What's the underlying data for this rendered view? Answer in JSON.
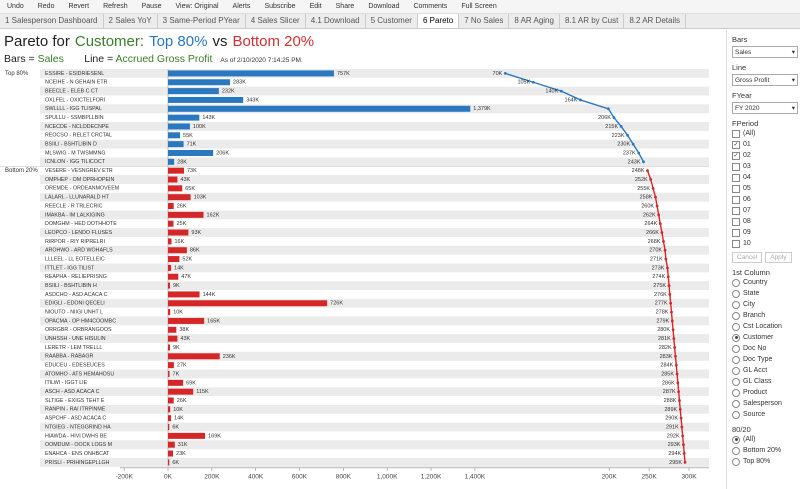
{
  "toolbar": {
    "items": [
      "Undo",
      "Redo",
      "Revert",
      "Refresh",
      "Pause",
      "View: Original",
      "Alerts",
      "Subscribe",
      "Edit",
      "Share",
      "Download",
      "Comments",
      "Full Screen"
    ]
  },
  "tabs": {
    "items": [
      "1 Salesperson Dashboard",
      "2 Sales YoY",
      "3 Same-Period PYear",
      "4 Sales Slicer",
      "4.1 Download",
      "5 Customer",
      "6 Pareto",
      "7 No Sales",
      "8 AR Aging",
      "8.1 AR by Cust",
      "8.2 AR Details"
    ],
    "active": 6
  },
  "header": {
    "title": [
      {
        "text": "Pareto for",
        "color": "#222"
      },
      {
        "text": "Customer:",
        "color": "#3a7d2a"
      },
      {
        "text": "Top 80%",
        "color": "#2a78c0"
      },
      {
        "text": "vs",
        "color": "#222"
      },
      {
        "text": "Bottom 20%",
        "color": "#d03030"
      }
    ],
    "subtitle": [
      {
        "text": "Bars = ",
        "color": "#222"
      },
      {
        "text": "Sales",
        "color": "#3a7d2a"
      },
      {
        "text": "       Line = ",
        "color": "#222"
      },
      {
        "text": "Accrued Gross Profit",
        "color": "#3a7d2a"
      }
    ],
    "as_of": "As of 2/10/2020 7:14:25 PM."
  },
  "chart_data": {
    "type": "pareto",
    "xlim": [
      -219000,
      2468000
    ],
    "xticks": [
      {
        "value": -200000,
        "label": "-200K"
      },
      {
        "value": 0,
        "label": "0K"
      },
      {
        "value": 200000,
        "label": "200K"
      },
      {
        "value": 400000,
        "label": "400K"
      },
      {
        "value": 600000,
        "label": "600K"
      },
      {
        "value": 800000,
        "label": "800K"
      },
      {
        "value": 1000000,
        "label": "1,000K"
      },
      {
        "value": 1200000,
        "label": "1,200K"
      },
      {
        "value": 1400000,
        "label": "1,400K"
      }
    ],
    "x2lim": [
      -412500,
      325000
    ],
    "x2ticks": [
      {
        "value": 200000,
        "label": "200K"
      },
      {
        "value": 250000,
        "label": "250K"
      },
      {
        "value": 300000,
        "label": "300K"
      }
    ],
    "groups": [
      {
        "name": "Top 80%",
        "color": "#2a78c0",
        "categories": [
          "ESSIRE - ESIDRIESENL",
          "NCEIHE - N GEHAIN ETR",
          "BEECLE - ELEB C CT",
          "OXLFEL - OXICTELFORI",
          "SWLLLL - IGG TLISPAL",
          "SPULLU - SSMBPLLBIN",
          "NCECDE - NCLODECNPE",
          "REOCSO - RELET CRCTAL",
          "BSIILI - BSHTLIBIN D",
          "MLSWIG - M TWSMMNG",
          "ICNLON - IGG TILICOCT"
        ],
        "bars": {
          "values": [
            757000,
            283000,
            232000,
            343000,
            1379000,
            143000,
            100000,
            55000,
            71000,
            206000,
            28000
          ],
          "value_labels": [
            "757K",
            "283K",
            "232K",
            "343K",
            "1,379K",
            "143K",
            "100K",
            "55K",
            "71K",
            "206K",
            "28K"
          ]
        },
        "line": {
          "values": [
            70000,
            105000,
            140000,
            164000,
            199000,
            206000,
            215000,
            223000,
            230000,
            237000,
            243000
          ],
          "value_labels": [
            "70K",
            "105K",
            "140K",
            "164K",
            null,
            "206K",
            "215K",
            "223K",
            "230K",
            "237K",
            "243K"
          ]
        }
      },
      {
        "name": "Bottom 20%",
        "color": "#d62728",
        "categories": [
          "VESERE - VESNGREV ETR",
          "OMPHEP - OM OPRHOPEIN",
          "OREMDE - ORDEANMOVEEM",
          "LALARL - LLUNARALD HT",
          "REECLE - R TRLECRIC",
          "IMAKBA - IM LALKIGING",
          "DOMGHM - HED DOTHHOTE",
          "LEOPCO - LENDO FLUSES",
          "RIRPOR - RIY RIPRELRI",
          "AROHWO - ARD WOHAFLS",
          "LLLEEL - LL EOTELLEIC",
          "ITTLET - IGG TILIST",
          "REAPHA - RELIEPRISNG",
          "BSIILI - BSHTLIBIN H",
          "ASDCHO - ASD ACACA C",
          "EDIGLI - EDONI QECELI",
          "NIOUTO - NIIGI UNHT L",
          "OPACMA - OP HM4COOMBC",
          "ORRGBR - ORBRANGOOS",
          "UNHSSH - UNE HISULIN",
          "LERETR - LEM TRELLL",
          "RAABBA - RABAGR",
          "EDUCEU - EDESEUCES",
          "ATOMHO - ATS HEMAHOSU",
          "ITILWI - IGGT LIE",
          "ASCH - ASD ACACA C",
          "SLTIGE - EXIGS TEHT E",
          "RANPIN - RAI ITRPINME",
          "ASPCHF - ASD ACACA C",
          "NTGIEG - NTEGGRIND HA",
          "HIAWDA - HIVI DWHS BE",
          "OOMDUM - OOCK LOGS M",
          "ENAHCA - ENS ONHBCAT",
          "PRISLI - PRIHINGEPLLGH"
        ],
        "bars": {
          "values": [
            73000,
            43000,
            65000,
            103000,
            26000,
            162000,
            25000,
            93000,
            16000,
            86000,
            52000,
            14000,
            47000,
            9000,
            144000,
            726000,
            10000,
            165000,
            38000,
            43000,
            9000,
            236000,
            27000,
            7000,
            69000,
            115000,
            26000,
            10000,
            14000,
            6000,
            169000,
            31000,
            23000,
            6000
          ],
          "value_labels": [
            "73K",
            "43K",
            "65K",
            "103K",
            "26K",
            "162K",
            "25K",
            "93K",
            "16K",
            "86K",
            "52K",
            "14K",
            "47K",
            "9K",
            "144K",
            "726K",
            "10K",
            "165K",
            "38K",
            "43K",
            "9K",
            "236K",
            "27K",
            "7K",
            "69K",
            "115K",
            "26K",
            "10K",
            "14K",
            "6K",
            "169K",
            "31K",
            "23K",
            "6K"
          ]
        },
        "line": {
          "values": [
            248000,
            252000,
            255000,
            258000,
            260000,
            262000,
            264000,
            266000,
            268000,
            270000,
            271000,
            273000,
            274000,
            275000,
            276000,
            277000,
            278000,
            279000,
            280000,
            281000,
            282000,
            283000,
            284000,
            285000,
            286000,
            287000,
            288000,
            289000,
            290000,
            291000,
            292000,
            293000,
            294000,
            295000
          ],
          "value_labels": [
            "248K",
            "252K",
            "255K",
            "258K",
            "260K",
            "262K",
            "264K",
            "266K",
            "268K",
            "270K",
            "271K",
            "273K",
            "274K",
            "275K",
            "276K",
            "277K",
            "278K",
            "279K",
            "280K",
            "281K",
            "282K",
            "283K",
            "284K",
            "285K",
            "286K",
            "287K",
            "288K",
            "289K",
            "290K",
            "291K",
            "292K",
            "293K",
            "294K",
            "295K"
          ]
        }
      }
    ]
  },
  "panel": {
    "bars": {
      "title": "Bars",
      "value": "Sales"
    },
    "line": {
      "title": "Line",
      "value": "Gross Profit"
    },
    "fyear": {
      "title": "FYear",
      "value": "FY 2020"
    },
    "fperiod": {
      "title": "FPeriod",
      "options": [
        {
          "label": "(All)",
          "checked": false
        },
        {
          "label": "01",
          "checked": true
        },
        {
          "label": "02",
          "checked": true
        },
        {
          "label": "03",
          "checked": false
        },
        {
          "label": "04",
          "checked": false
        },
        {
          "label": "05",
          "checked": false
        },
        {
          "label": "06",
          "checked": false
        },
        {
          "label": "07",
          "checked": false
        },
        {
          "label": "08",
          "checked": false
        },
        {
          "label": "09",
          "checked": false
        },
        {
          "label": "10",
          "checked": false
        }
      ],
      "buttons": [
        "Cancel",
        "Apply"
      ]
    },
    "first_column": {
      "title": "1st Column",
      "options": [
        "Country",
        "State",
        "City",
        "Branch",
        "Cst Location",
        "Customer",
        "Doc No",
        "Doc Type",
        "GL Acct",
        "GL Class",
        "Product",
        "Salesperson",
        "Source"
      ],
      "selected": 5
    },
    "split": {
      "title": "80/20",
      "options": [
        "(All)",
        "Bottom 20%",
        "Top 80%"
      ],
      "selected": 0
    }
  }
}
